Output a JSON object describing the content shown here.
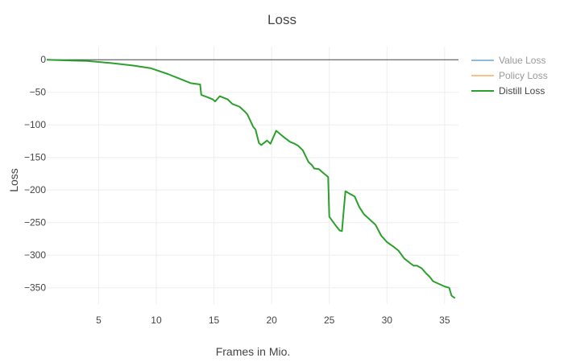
{
  "chart_data": {
    "type": "line",
    "title": "Loss",
    "xlabel": "Frames in Mio.",
    "ylabel": "Loss",
    "xlim": [
      0.5,
      36.2
    ],
    "ylim": [
      -375,
      20
    ],
    "x_ticks": [
      5,
      10,
      15,
      20,
      25,
      30,
      35
    ],
    "y_ticks": [
      0,
      -50,
      -100,
      -150,
      -200,
      -250,
      -300,
      -350
    ],
    "grid": true,
    "legend_position": "top-right",
    "series": [
      {
        "name": "Value Loss",
        "color": "#1f77b4",
        "visible": false,
        "x": [
          0.5,
          36.2
        ],
        "y": [
          0,
          0
        ]
      },
      {
        "name": "Policy Loss",
        "color": "#ff7f0e",
        "visible": false,
        "x": [
          0.5,
          36.2
        ],
        "y": [
          0,
          0
        ]
      },
      {
        "name": "Distill Loss",
        "color": "#2ca02c",
        "visible": true,
        "x": [
          0.5,
          2,
          4,
          6,
          8,
          9.5,
          11,
          12,
          13,
          13.8,
          13.9,
          14.5,
          14.9,
          15.1,
          15.5,
          16.2,
          16.6,
          17.2,
          17.7,
          17.9,
          18.4,
          18.6,
          18.9,
          19.1,
          19.6,
          19.9,
          20.4,
          21.0,
          21.6,
          22.0,
          22.3,
          22.7,
          23.2,
          23.5,
          23.7,
          24.1,
          24.5,
          24.9,
          25.0,
          25.5,
          25.9,
          26.1,
          26.4,
          26.8,
          27.2,
          27.6,
          28.0,
          28.5,
          29.0,
          29.5,
          30.0,
          30.5,
          31.0,
          31.5,
          32.0,
          32.3,
          32.6,
          33.0,
          33.4,
          33.7,
          34.0,
          34.5,
          35.0,
          35.4,
          35.6,
          35.9
        ],
        "y": [
          0,
          -1,
          -2,
          -5,
          -9,
          -13,
          -22,
          -29,
          -36,
          -38,
          -54,
          -58,
          -61,
          -64,
          -56,
          -61,
          -68,
          -72,
          -80,
          -84,
          -103,
          -107,
          -128,
          -131,
          -124,
          -129,
          -109,
          -118,
          -126,
          -129,
          -132,
          -139,
          -157,
          -162,
          -167,
          -168,
          -174,
          -180,
          -241,
          -253,
          -262,
          -263,
          -202,
          -206,
          -210,
          -226,
          -237,
          -245,
          -253,
          -270,
          -280,
          -286,
          -293,
          -305,
          -312,
          -316,
          -316,
          -320,
          -328,
          -333,
          -340,
          -344,
          -348,
          -350,
          -362,
          -366
        ]
      }
    ]
  }
}
